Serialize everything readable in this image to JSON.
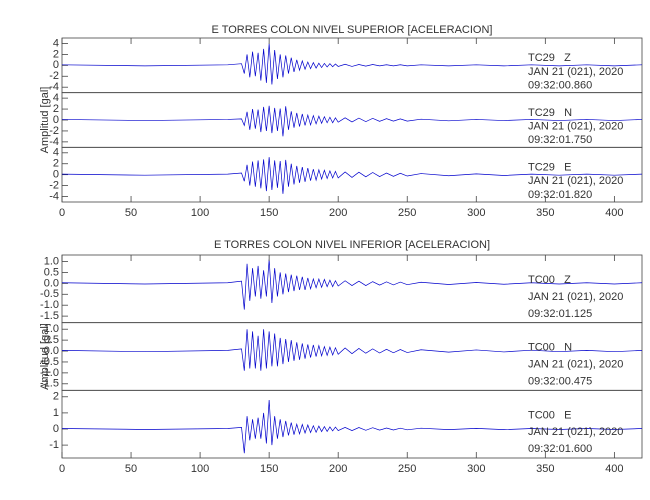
{
  "chart_data": [
    {
      "type": "line",
      "title": "E TORRES COLON NIVEL SUPERIOR [ACELERACION]",
      "y_label": "Amplitud [gal]",
      "x": [
        0,
        60,
        120,
        130,
        132,
        134,
        136,
        138,
        140,
        142,
        144,
        146,
        148,
        150,
        152,
        154,
        156,
        158,
        160,
        162,
        164,
        166,
        168,
        170,
        172,
        174,
        176,
        178,
        180,
        182,
        184,
        186,
        188,
        190,
        192,
        194,
        196,
        198,
        200,
        205,
        210,
        215,
        220,
        225,
        230,
        235,
        240,
        245,
        250,
        260,
        280,
        300,
        320,
        340,
        360,
        380,
        400,
        420
      ],
      "xlim": [
        0,
        420
      ],
      "xticks": [
        0,
        50,
        100,
        150,
        200,
        250,
        300,
        350,
        400
      ],
      "series": [
        {
          "name": "TC29   Z",
          "date": "JAN 21 (021), 2020",
          "time": "09:32:00.860",
          "color": "#0000cc",
          "ylim": [
            -5,
            5
          ],
          "yticks": [
            -4,
            -2,
            0,
            2,
            4
          ],
          "values": [
            0.1,
            -0.1,
            0.1,
            0.3,
            -1.5,
            2.0,
            -2.2,
            2.5,
            -2.0,
            2.3,
            -2.8,
            3.0,
            -3.2,
            4.0,
            -3.5,
            2.8,
            -2.5,
            2.0,
            -2.2,
            1.8,
            -1.5,
            1.4,
            -1.2,
            1.0,
            -0.9,
            0.8,
            -0.7,
            0.6,
            -0.6,
            0.5,
            -0.5,
            0.4,
            -0.4,
            0.35,
            -0.3,
            0.3,
            -0.25,
            0.25,
            -0.2,
            0.2,
            -0.2,
            0.15,
            -0.15,
            0.15,
            -0.1,
            0.1,
            -0.1,
            0.1,
            -0.1,
            0.1,
            -0.1,
            0.1,
            -0.1,
            0.1,
            -0.1,
            0.1,
            -0.1,
            0.1
          ]
        },
        {
          "name": "TC29   N",
          "date": "JAN 21 (021), 2020",
          "time": "09:32:01.750",
          "color": "#0000cc",
          "ylim": [
            -5,
            5
          ],
          "yticks": [
            -4,
            -2,
            0,
            2,
            4
          ],
          "values": [
            0.1,
            -0.1,
            0.1,
            0.2,
            -1.0,
            1.5,
            -1.8,
            2.0,
            -1.6,
            1.9,
            -2.2,
            2.4,
            -2.0,
            2.6,
            -2.4,
            2.2,
            -2.0,
            2.1,
            -3.0,
            2.5,
            -1.8,
            1.6,
            -1.4,
            1.3,
            -1.2,
            1.1,
            -1.0,
            0.9,
            -0.9,
            0.8,
            -0.7,
            0.7,
            -0.6,
            0.6,
            -0.5,
            0.5,
            -0.5,
            0.4,
            -0.4,
            0.4,
            -0.35,
            0.35,
            -0.3,
            0.3,
            -0.25,
            0.25,
            -0.2,
            0.2,
            -0.2,
            0.15,
            -0.15,
            0.1,
            -0.1,
            0.1,
            -0.1,
            0.1,
            -0.1,
            0.1
          ]
        },
        {
          "name": "TC29   E",
          "date": "JAN 21 (021), 2020",
          "time": "09:32:01.820",
          "color": "#0000cc",
          "ylim": [
            -5,
            5
          ],
          "yticks": [
            -4,
            -2,
            0,
            2,
            4
          ],
          "values": [
            0.1,
            -0.1,
            0.1,
            0.3,
            -1.2,
            1.8,
            -2.0,
            2.4,
            -2.2,
            2.6,
            -2.5,
            2.8,
            -3.0,
            3.2,
            -2.8,
            2.6,
            -2.4,
            2.5,
            -3.5,
            2.7,
            -2.2,
            2.0,
            -1.8,
            1.6,
            -1.5,
            1.4,
            -1.3,
            1.2,
            -1.1,
            1.0,
            -1.0,
            0.9,
            -0.8,
            0.8,
            -0.7,
            0.7,
            -0.6,
            0.6,
            -0.6,
            0.5,
            -0.5,
            0.45,
            -0.4,
            0.4,
            -0.35,
            0.3,
            -0.3,
            0.25,
            -0.25,
            0.2,
            -0.2,
            0.15,
            -0.15,
            0.1,
            -0.1,
            0.1,
            -0.1,
            0.1
          ]
        }
      ]
    },
    {
      "type": "line",
      "title": "E TORRES COLON NIVEL INFERIOR [ACELERACION]",
      "y_label": "Amplitud [gal]",
      "x": [
        0,
        60,
        120,
        130,
        132,
        134,
        136,
        138,
        140,
        142,
        144,
        146,
        148,
        150,
        152,
        154,
        156,
        158,
        160,
        162,
        164,
        166,
        168,
        170,
        172,
        174,
        176,
        178,
        180,
        182,
        184,
        186,
        188,
        190,
        192,
        194,
        196,
        198,
        200,
        205,
        210,
        215,
        220,
        225,
        230,
        235,
        240,
        245,
        250,
        260,
        280,
        300,
        320,
        340,
        360,
        380,
        400,
        420
      ],
      "xlim": [
        0,
        420
      ],
      "xticks": [
        0,
        50,
        100,
        150,
        200,
        250,
        300,
        350,
        400
      ],
      "series": [
        {
          "name": "TC00   Z",
          "date": "JAN 21 (021), 2020",
          "time": "09:32:01.125",
          "color": "#0000cc",
          "ylim": [
            -1.8,
            1.3
          ],
          "yticks": [
            {
              "value": 1,
              "label": "1.0"
            },
            0.5,
            {
              "value": 0,
              "label": "0.0"
            },
            -0.5,
            {
              "value": -1,
              "label": "-1.0"
            },
            -1.5
          ],
          "values": [
            0.03,
            -0.03,
            0.03,
            0.1,
            -1.2,
            0.9,
            -0.8,
            0.7,
            -0.6,
            0.8,
            -0.7,
            0.6,
            -0.6,
            1.1,
            -0.9,
            0.7,
            -0.6,
            0.5,
            -0.5,
            0.45,
            -0.4,
            0.4,
            -0.35,
            0.35,
            -0.3,
            0.3,
            -0.3,
            0.25,
            -0.25,
            0.2,
            -0.2,
            0.2,
            -0.18,
            0.18,
            -0.15,
            0.15,
            -0.15,
            0.12,
            -0.12,
            0.12,
            -0.1,
            0.1,
            -0.1,
            0.08,
            -0.08,
            0.07,
            -0.07,
            0.06,
            -0.06,
            0.05,
            -0.05,
            0.04,
            -0.04,
            0.03,
            -0.03,
            0.03,
            -0.03,
            0.03
          ]
        },
        {
          "name": "TC00   N",
          "date": "JAN 21 (021), 2020",
          "time": "09:32:00.475",
          "color": "#0000cc",
          "ylim": [
            -1.8,
            1.3
          ],
          "yticks": [
            {
              "value": 1,
              "label": "1.0"
            },
            0.5,
            {
              "value": 0,
              "label": "0.0"
            },
            -0.5,
            {
              "value": -1,
              "label": "-1.0"
            },
            -1.5
          ],
          "values": [
            0.03,
            -0.03,
            0.03,
            0.1,
            -0.9,
            1.0,
            -0.8,
            0.9,
            -0.8,
            0.7,
            -0.9,
            1.0,
            -0.8,
            0.9,
            -0.7,
            0.8,
            -0.7,
            0.6,
            -0.6,
            0.55,
            -0.5,
            0.5,
            -0.45,
            0.4,
            -0.4,
            0.35,
            -0.35,
            0.3,
            -0.3,
            0.28,
            -0.25,
            0.25,
            -0.22,
            0.2,
            -0.2,
            0.18,
            -0.18,
            0.15,
            -0.15,
            0.14,
            -0.12,
            0.12,
            -0.1,
            0.1,
            -0.09,
            0.08,
            -0.08,
            0.07,
            -0.07,
            0.06,
            -0.05,
            0.05,
            -0.04,
            0.04,
            -0.03,
            0.03,
            -0.03,
            0.03
          ]
        },
        {
          "name": "TC00   E",
          "date": "JAN 21 (021), 2020",
          "time": "09:32:01.600",
          "color": "#0000cc",
          "ylim": [
            -1.8,
            2.4
          ],
          "yticks": [
            2,
            1,
            0,
            -1
          ],
          "values": [
            0.03,
            -0.03,
            0.03,
            0.1,
            -1.5,
            0.8,
            -0.7,
            0.6,
            -0.6,
            0.7,
            -0.6,
            1.0,
            -0.9,
            1.8,
            -1.0,
            0.8,
            -0.6,
            0.6,
            -0.5,
            0.5,
            -0.4,
            0.4,
            -0.35,
            0.3,
            -0.3,
            0.28,
            -0.25,
            0.25,
            -0.22,
            0.2,
            -0.2,
            0.18,
            -0.16,
            0.15,
            -0.15,
            0.13,
            -0.12,
            0.12,
            -0.1,
            0.1,
            -0.1,
            0.09,
            -0.08,
            0.08,
            -0.07,
            0.06,
            -0.06,
            0.05,
            -0.05,
            0.05,
            -0.04,
            0.04,
            -0.04,
            0.03,
            -0.03,
            0.03,
            -0.03,
            0.03
          ]
        }
      ]
    }
  ]
}
